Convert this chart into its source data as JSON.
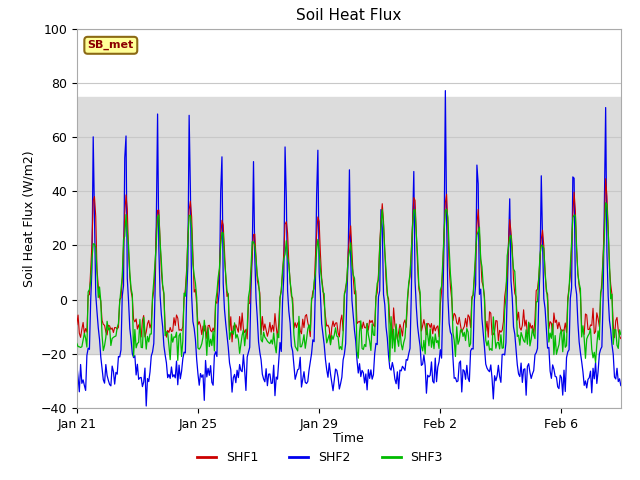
{
  "title": "Soil Heat Flux",
  "xlabel": "Time",
  "ylabel": "Soil Heat Flux (W/m2)",
  "ylim": [
    -40,
    100
  ],
  "yticks": [
    -40,
    -20,
    0,
    20,
    40,
    60,
    80,
    100
  ],
  "xtick_labels": [
    "Jan 21",
    "Jan 25",
    "Jan 29",
    "Feb 2",
    "Feb 6"
  ],
  "xtick_positions": [
    0,
    96,
    192,
    288,
    384
  ],
  "total_points": 432,
  "shf1_color": "#cc0000",
  "shf2_color": "#0000ee",
  "shf3_color": "#00bb00",
  "fig_bg_color": "#ffffff",
  "plot_bg_color": "#ffffff",
  "legend_label1": "SHF1",
  "legend_label2": "SHF2",
  "legend_label3": "SHF3",
  "station_label": "SB_met",
  "title_fontsize": 11,
  "axis_fontsize": 9,
  "tick_fontsize": 9,
  "grid_color": "#c8c8c8",
  "shaded_band_low": -20,
  "shaded_band_high": 75,
  "shaded_color": "#dcdcdc"
}
